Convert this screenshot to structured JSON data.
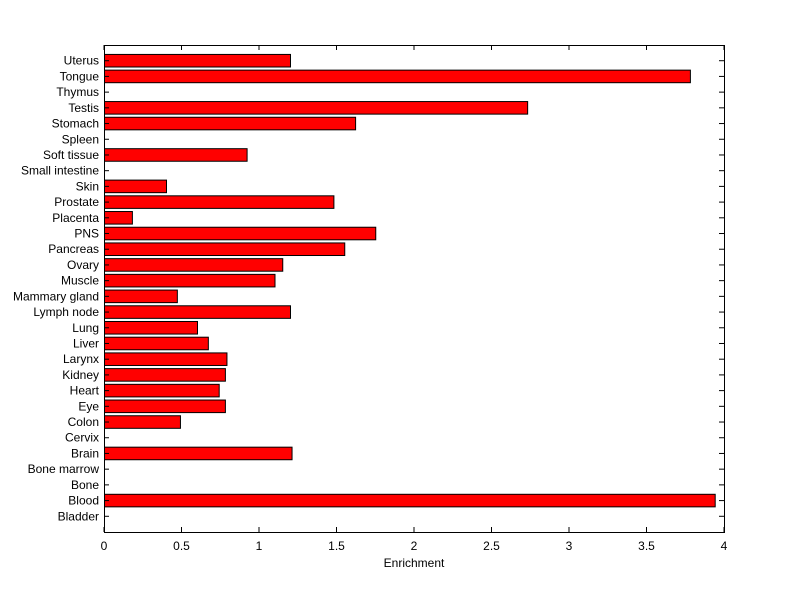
{
  "chart_data": {
    "type": "bar",
    "orientation": "horizontal",
    "title": "",
    "xlabel": "Enrichment",
    "ylabel": "",
    "xlim": [
      0,
      4
    ],
    "xticks": [
      "0",
      "0.5",
      "1",
      "1.5",
      "2",
      "2.5",
      "3",
      "3.5",
      "4"
    ],
    "grid": false,
    "legend": "none",
    "bar_color": "#ff0000",
    "categories": [
      "Uterus",
      "Tongue",
      "Thymus",
      "Testis",
      "Stomach",
      "Spleen",
      "Soft tissue",
      "Small intestine",
      "Skin",
      "Prostate",
      "Placenta",
      "PNS",
      "Pancreas",
      "Ovary",
      "Muscle",
      "Mammary gland",
      "Lymph node",
      "Lung",
      "Liver",
      "Larynx",
      "Kidney",
      "Heart",
      "Eye",
      "Colon",
      "Cervix",
      "Brain",
      "Bone marrow",
      "Bone",
      "Blood",
      "Bladder"
    ],
    "values": [
      1.2,
      3.78,
      0,
      2.73,
      1.62,
      0,
      0.92,
      0,
      0.4,
      1.48,
      0.18,
      1.75,
      1.55,
      1.15,
      1.1,
      0.47,
      1.2,
      0.6,
      0.67,
      0.79,
      0.78,
      0.74,
      0.78,
      0.49,
      0,
      1.21,
      0,
      0,
      3.94,
      0
    ]
  }
}
